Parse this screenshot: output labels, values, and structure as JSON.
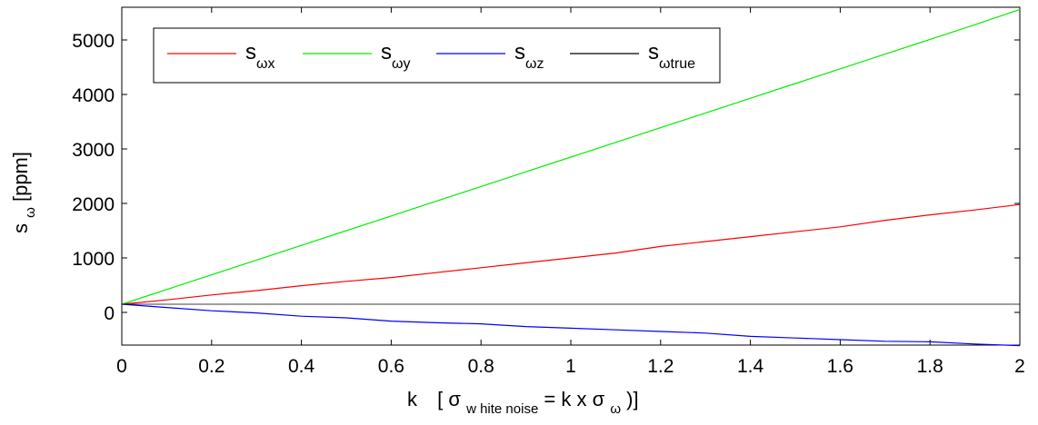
{
  "chart_data": {
    "type": "line",
    "xlabel": {
      "main": "k",
      "bracket_open": "[",
      "sigma": "σ",
      "sigma_sub": "w hite noise",
      "equation": " = k x ",
      "sigma2": "σ",
      "sigma2_sub": "ω",
      "bracket_close": ")]"
    },
    "ylabel": {
      "main": "s",
      "sub": "ω",
      "unit": " [ppm]"
    },
    "xlim": [
      0,
      2
    ],
    "ylim": [
      -600,
      5600
    ],
    "x_ticks": [
      "0",
      "0.2",
      "0.4",
      "0.6",
      "0.8",
      "1",
      "1.2",
      "1.4",
      "1.6",
      "1.8",
      "2"
    ],
    "y_ticks": [
      "0",
      "1000",
      "2000",
      "3000",
      "4000",
      "5000"
    ],
    "grid": false,
    "legend_position": "top-left",
    "x": [
      0,
      0.1,
      0.2,
      0.3,
      0.4,
      0.5,
      0.6,
      0.7,
      0.8,
      0.9,
      1.0,
      1.1,
      1.2,
      1.3,
      1.4,
      1.5,
      1.6,
      1.7,
      1.8,
      1.9,
      2.0
    ],
    "series": [
      {
        "name": "s",
        "name_sub": "ωx",
        "color": "#ff0000",
        "values": [
          150,
          230,
          320,
          400,
          490,
          570,
          640,
          730,
          820,
          910,
          1000,
          1090,
          1210,
          1300,
          1390,
          1480,
          1570,
          1690,
          1790,
          1880,
          1980
        ]
      },
      {
        "name": "s",
        "name_sub": "ωy",
        "color": "#00ee00",
        "values": [
          150,
          420,
          690,
          960,
          1230,
          1500,
          1770,
          2040,
          2310,
          2580,
          2850,
          3120,
          3390,
          3660,
          3930,
          4200,
          4470,
          4740,
          5010,
          5280,
          5560
        ]
      },
      {
        "name": "s",
        "name_sub": "ωz",
        "color": "#0000ff",
        "values": [
          150,
          90,
          30,
          -10,
          -70,
          -100,
          -160,
          -190,
          -210,
          -260,
          -290,
          -320,
          -350,
          -380,
          -440,
          -470,
          -500,
          -530,
          -540,
          -580,
          -610
        ]
      },
      {
        "name": "s",
        "name_sub": "ωtrue",
        "color": "#000000",
        "values": [
          150,
          150,
          150,
          150,
          150,
          150,
          150,
          150,
          150,
          150,
          150,
          150,
          150,
          150,
          150,
          150,
          150,
          150,
          150,
          150,
          150
        ]
      }
    ]
  }
}
